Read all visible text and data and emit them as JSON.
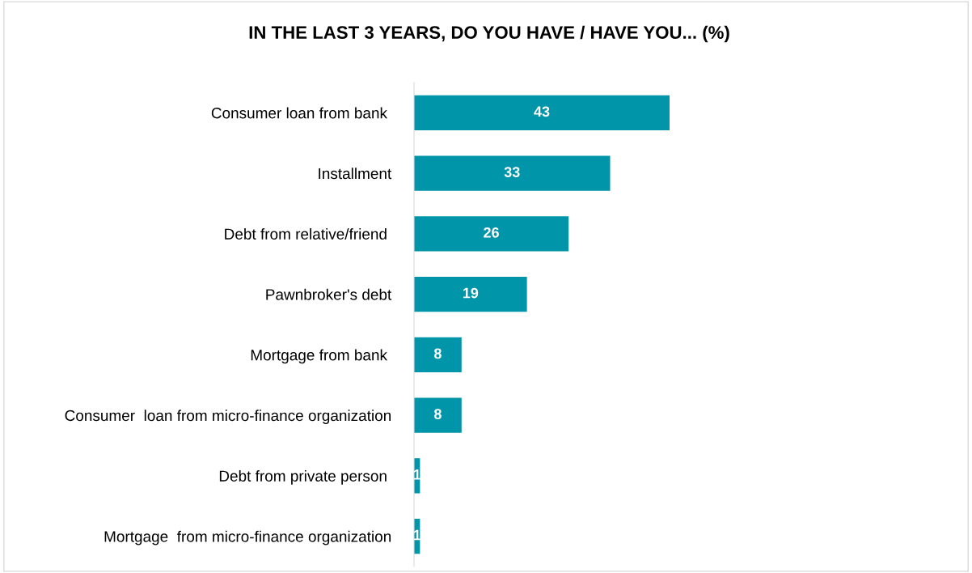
{
  "chart_data": {
    "type": "bar",
    "orientation": "horizontal",
    "title": "IN THE LAST 3 YEARS, DO YOU HAVE / HAVE YOU... (%)",
    "categories": [
      "Consumer loan from bank ",
      "Installment",
      "Debt from relative/friend ",
      "Pawnbroker's debt",
      "Mortgage from bank ",
      "Consumer  loan from micro-finance organization",
      "Debt from private person ",
      "Mortgage  from micro-finance organization"
    ],
    "values": [
      43,
      33,
      26,
      19,
      8,
      8,
      1,
      1
    ],
    "color": "#0095a8",
    "data_labels": true,
    "grid": false,
    "legend": false
  }
}
